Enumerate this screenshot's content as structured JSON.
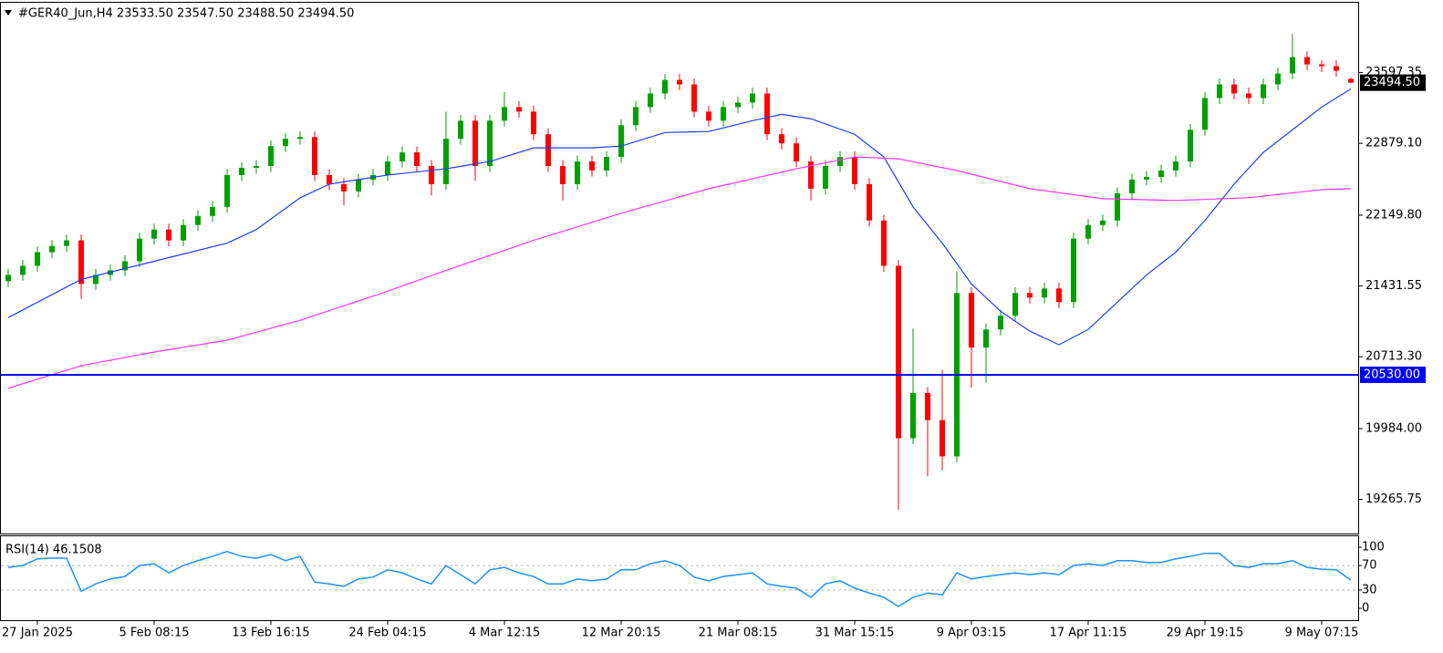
{
  "chart_data": [
    {
      "type": "candlestick",
      "title": "#GER40_Jun,H4  23533.50 23547.50 23488.50 23494.50",
      "categories": [
        null,
        null,
        "27 Jan 2025",
        null,
        null,
        null,
        null,
        null,
        null,
        null,
        "5 Feb 08:15",
        null,
        null,
        null,
        null,
        null,
        null,
        null,
        "13 Feb 16:15",
        null,
        null,
        null,
        null,
        null,
        null,
        null,
        "24 Feb 04:15",
        null,
        null,
        null,
        null,
        null,
        null,
        null,
        "4 Mar 12:15",
        null,
        null,
        null,
        null,
        null,
        null,
        null,
        "12 Mar 20:15",
        null,
        null,
        null,
        null,
        null,
        null,
        null,
        "21 Mar 08:15",
        null,
        null,
        null,
        null,
        null,
        null,
        null,
        "31 Mar 15:15",
        null,
        null,
        null,
        null,
        null,
        null,
        null,
        "9 Apr 03:15",
        null,
        null,
        null,
        null,
        null,
        null,
        null,
        "17 Apr 11:15",
        null,
        null,
        null,
        null,
        null,
        null,
        null,
        "29 Apr 19:15",
        null,
        null,
        null,
        null,
        null,
        null,
        null,
        "9 May 07:15",
        null,
        null
      ],
      "open": [
        21480,
        21544,
        21636,
        21774,
        21838,
        21894,
        21452,
        21544,
        21590,
        21682,
        21912,
        22004,
        21894,
        22050,
        22142,
        22234,
        22557,
        22630,
        22649,
        22851,
        22925,
        22943,
        22557,
        22465,
        22391,
        22511,
        22557,
        22695,
        22787,
        22649,
        22465,
        22925,
        23109,
        22649,
        23109,
        23247,
        23201,
        22971,
        22649,
        22465,
        22695,
        22603,
        22741,
        23063,
        23247,
        23385,
        23523,
        23477,
        23201,
        23109,
        23247,
        23293,
        23385,
        22971,
        22879,
        22695,
        22419,
        22649,
        22741,
        22465,
        22096,
        21636,
        19886,
        20346,
        20070,
        19702,
        21360,
        20806,
        20990,
        21129,
        21360,
        21314,
        21406,
        21268,
        21912,
        22050,
        22096,
        22372,
        22511,
        22538,
        22603,
        22695,
        23017,
        23339,
        23477,
        23385,
        23339,
        23477,
        23588,
        23754,
        23680,
        23662,
        23533.5
      ],
      "high": [
        21604,
        21696,
        21834,
        21898,
        21954,
        21954,
        21604,
        21650,
        21742,
        21972,
        22064,
        22064,
        22110,
        22202,
        22294,
        22617,
        22690,
        22709,
        22911,
        22985,
        23003,
        23003,
        22617,
        22525,
        22571,
        22617,
        22755,
        22847,
        22847,
        22709,
        23200,
        23169,
        23169,
        23169,
        23400,
        23307,
        23261,
        23031,
        22709,
        22755,
        22755,
        22801,
        23123,
        23307,
        23445,
        23583,
        23583,
        23537,
        23261,
        23307,
        23353,
        23445,
        23445,
        23031,
        22939,
        22755,
        22709,
        22801,
        22801,
        22525,
        22156,
        21696,
        21000,
        20406,
        20580,
        21580,
        21420,
        21050,
        21189,
        21420,
        21420,
        21466,
        21466,
        21972,
        22110,
        22156,
        22432,
        22571,
        22598,
        22663,
        22755,
        23077,
        23399,
        23537,
        23537,
        23445,
        23537,
        23648,
        23990,
        23814,
        23722,
        23722,
        23547.5
      ],
      "low": [
        21420,
        21484,
        21576,
        21714,
        21778,
        21300,
        21392,
        21484,
        21530,
        21622,
        21852,
        21834,
        21834,
        21990,
        22082,
        22174,
        22497,
        22570,
        22589,
        22791,
        22865,
        22497,
        22405,
        22250,
        22331,
        22451,
        22497,
        22635,
        22589,
        22350,
        22405,
        22865,
        22500,
        22589,
        23049,
        23141,
        22911,
        22589,
        22300,
        22405,
        22543,
        22543,
        22681,
        23003,
        23187,
        23325,
        23417,
        23141,
        23049,
        23049,
        23187,
        23233,
        22911,
        22819,
        22635,
        22300,
        22359,
        22589,
        22405,
        22036,
        21576,
        19160,
        19826,
        19500,
        19560,
        19642,
        20400,
        20450,
        20930,
        21069,
        21254,
        21254,
        21208,
        21208,
        21852,
        21990,
        22036,
        22312,
        22451,
        22478,
        22543,
        22635,
        22957,
        23279,
        23325,
        23279,
        23279,
        23417,
        23528,
        23620,
        23602,
        23556,
        23488.5
      ],
      "close": [
        21544,
        21636,
        21774,
        21838,
        21894,
        21452,
        21544,
        21590,
        21682,
        21912,
        22004,
        21894,
        22050,
        22142,
        22234,
        22557,
        22630,
        22649,
        22851,
        22925,
        22943,
        22557,
        22465,
        22391,
        22511,
        22557,
        22695,
        22787,
        22649,
        22465,
        22925,
        23109,
        22649,
        23109,
        23247,
        23201,
        22971,
        22649,
        22465,
        22695,
        22603,
        22741,
        23063,
        23247,
        23385,
        23523,
        23477,
        23201,
        23109,
        23247,
        23293,
        23385,
        22971,
        22879,
        22695,
        22419,
        22649,
        22741,
        22465,
        22096,
        21636,
        19886,
        20346,
        20070,
        19702,
        21360,
        20806,
        20990,
        21129,
        21360,
        21314,
        21406,
        21268,
        21912,
        22050,
        22096,
        22372,
        22511,
        22538,
        22603,
        22695,
        23017,
        23339,
        23477,
        23385,
        23339,
        23477,
        23588,
        23754,
        23680,
        23662,
        23616,
        23494.5
      ],
      "up_color": "#00a000",
      "down_color": "#ff0000",
      "ylim": [
        18919,
        24306
      ],
      "yticks": [
        {
          "value": 19265.75,
          "label": "19265.75"
        },
        {
          "value": 19984,
          "label": "19984.00"
        },
        {
          "value": 20713.3,
          "label": "20713.30"
        },
        {
          "value": 21431.55,
          "label": "21431.55"
        },
        {
          "value": 22149.8,
          "label": "22149.80"
        },
        {
          "value": 22879.1,
          "label": "22879.10"
        },
        {
          "value": 23597.35,
          "label": "23597.35"
        }
      ],
      "overlays": [
        {
          "color": "#1e3cff",
          "x": [
            0,
            5,
            10,
            15,
            17,
            20,
            22,
            26,
            30,
            33,
            36,
            40,
            42,
            45,
            48,
            51,
            53,
            55,
            58,
            60,
            62,
            64,
            66,
            68,
            70,
            72,
            74,
            76,
            78,
            80,
            82,
            84,
            86,
            88,
            90,
            92
          ],
          "values": [
            21111,
            21498,
            21682,
            21866,
            22004,
            22326,
            22465,
            22557,
            22621,
            22695,
            22833,
            22833,
            22851,
            22989,
            22999,
            23109,
            23173,
            23128,
            22971,
            22741,
            22234,
            21866,
            21452,
            21175,
            20973,
            20835,
            20990,
            21267,
            21544,
            21774,
            22096,
            22465,
            22787,
            23017,
            23247,
            23431
          ]
        },
        {
          "color": "#ff33ff",
          "x": [
            0,
            5,
            10,
            15,
            20,
            26,
            30,
            36,
            42,
            48,
            54,
            58,
            61,
            65,
            70,
            75,
            80,
            85,
            90,
            92
          ],
          "values": [
            20393,
            20623,
            20761,
            20881,
            21083,
            21378,
            21590,
            21894,
            22170,
            22419,
            22621,
            22741,
            22722,
            22603,
            22419,
            22317,
            22299,
            22327,
            22409,
            22419
          ]
        }
      ],
      "hline": {
        "value": 20530,
        "label": "20530.00",
        "color": "#0000ff"
      },
      "last_price_label": "23494.50"
    },
    {
      "type": "line",
      "title": "RSI(14) 46.1508",
      "color": "#1e90ff",
      "values": [
        67,
        70,
        81,
        82,
        82,
        28,
        40,
        48,
        52,
        70,
        73,
        58,
        70,
        78,
        85,
        93,
        85,
        82,
        88,
        78,
        85,
        43,
        40,
        36,
        48,
        51,
        63,
        58,
        48,
        40,
        70,
        55,
        40,
        63,
        67,
        58,
        52,
        40,
        40,
        48,
        45,
        48,
        63,
        63,
        73,
        78,
        70,
        51,
        45,
        52,
        55,
        58,
        40,
        36,
        33,
        18,
        40,
        45,
        33,
        25,
        18,
        3,
        18,
        25,
        22,
        58,
        48,
        52,
        55,
        58,
        55,
        58,
        55,
        70,
        73,
        70,
        78,
        78,
        75,
        75,
        81,
        85,
        90,
        90,
        70,
        67,
        73,
        73,
        78,
        67,
        64,
        63,
        46.1508
      ],
      "ylim": [
        0,
        100
      ],
      "yticks": [
        0,
        30,
        70,
        100
      ],
      "levels": [
        30,
        70
      ]
    }
  ]
}
